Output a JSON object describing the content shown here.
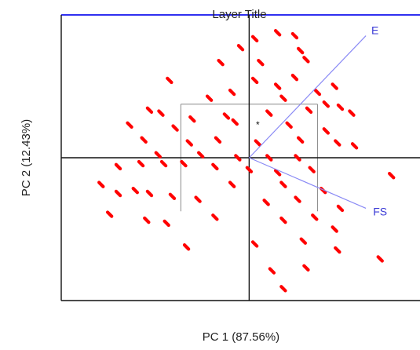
{
  "chart_data": {
    "type": "scatter",
    "title": "Layer Title",
    "xlabel": "PC 1 (87.56%)",
    "ylabel": "PC 2 (12.43%)",
    "xlim": [
      -3.3,
      3.0
    ],
    "ylim": [
      -2.4,
      2.4
    ],
    "grid": false,
    "legend": "none",
    "colors": {
      "points": "#ff0000",
      "vectors": "#8a8af5",
      "vector_labels": "#3b3bd6",
      "title_bar": "#2f2ff0",
      "axes": "#111111",
      "box": "#888888"
    },
    "point_marker": "short diagonal dash",
    "center_marker": "*",
    "centroid_box": {
      "x": [
        -1.2,
        1.2
      ],
      "y": [
        -0.9,
        0.9
      ]
    },
    "vectors": [
      {
        "name": "E",
        "x": 2.05,
        "y": 2.05
      },
      {
        "name": "FS",
        "x": 2.05,
        "y": -0.85
      }
    ],
    "points": [
      {
        "x": 0.1,
        "y": 2.0
      },
      {
        "x": 0.5,
        "y": 2.1
      },
      {
        "x": 0.8,
        "y": 2.05
      },
      {
        "x": -0.15,
        "y": 1.85
      },
      {
        "x": 0.9,
        "y": 1.8
      },
      {
        "x": 1.0,
        "y": 1.65
      },
      {
        "x": -0.5,
        "y": 1.6
      },
      {
        "x": 0.2,
        "y": 1.6
      },
      {
        "x": 0.8,
        "y": 1.35
      },
      {
        "x": -1.4,
        "y": 1.3
      },
      {
        "x": 0.1,
        "y": 1.3
      },
      {
        "x": 0.5,
        "y": 1.2
      },
      {
        "x": -0.7,
        "y": 1.0
      },
      {
        "x": -0.3,
        "y": 1.1
      },
      {
        "x": 0.6,
        "y": 1.0
      },
      {
        "x": 1.2,
        "y": 1.1
      },
      {
        "x": 1.5,
        "y": 1.2
      },
      {
        "x": 1.35,
        "y": 0.9
      },
      {
        "x": -1.75,
        "y": 0.8
      },
      {
        "x": -1.55,
        "y": 0.75
      },
      {
        "x": -1.0,
        "y": 0.65
      },
      {
        "x": -0.4,
        "y": 0.7
      },
      {
        "x": 0.35,
        "y": 0.75
      },
      {
        "x": 1.05,
        "y": 0.8
      },
      {
        "x": 1.6,
        "y": 0.85
      },
      {
        "x": 1.8,
        "y": 0.75
      },
      {
        "x": -2.1,
        "y": 0.55
      },
      {
        "x": -1.3,
        "y": 0.5
      },
      {
        "x": -0.25,
        "y": 0.6
      },
      {
        "x": 0.7,
        "y": 0.55
      },
      {
        "x": 1.35,
        "y": 0.45
      },
      {
        "x": -1.85,
        "y": 0.3
      },
      {
        "x": -1.05,
        "y": 0.25
      },
      {
        "x": -0.55,
        "y": 0.3
      },
      {
        "x": 0.15,
        "y": 0.25
      },
      {
        "x": 0.9,
        "y": 0.3
      },
      {
        "x": 1.55,
        "y": 0.25
      },
      {
        "x": 1.85,
        "y": 0.2
      },
      {
        "x": -1.6,
        "y": 0.05
      },
      {
        "x": -0.85,
        "y": 0.05
      },
      {
        "x": -0.2,
        "y": 0.0
      },
      {
        "x": 0.35,
        "y": 0.0
      },
      {
        "x": 0.85,
        "y": 0.0
      },
      {
        "x": -2.3,
        "y": -0.15
      },
      {
        "x": -1.9,
        "y": -0.1
      },
      {
        "x": -1.5,
        "y": -0.1
      },
      {
        "x": -1.15,
        "y": -0.1
      },
      {
        "x": -0.6,
        "y": -0.15
      },
      {
        "x": 0.0,
        "y": -0.2
      },
      {
        "x": 0.5,
        "y": -0.25
      },
      {
        "x": 1.1,
        "y": -0.2
      },
      {
        "x": -0.3,
        "y": -0.45
      },
      {
        "x": 0.6,
        "y": -0.45
      },
      {
        "x": 1.3,
        "y": -0.55
      },
      {
        "x": -2.6,
        "y": -0.45
      },
      {
        "x": -2.3,
        "y": -0.6
      },
      {
        "x": -2.0,
        "y": -0.55
      },
      {
        "x": -1.75,
        "y": -0.6
      },
      {
        "x": -1.35,
        "y": -0.65
      },
      {
        "x": -0.9,
        "y": -0.7
      },
      {
        "x": 0.3,
        "y": -0.75
      },
      {
        "x": 0.85,
        "y": -0.7
      },
      {
        "x": 1.6,
        "y": -0.85
      },
      {
        "x": -2.45,
        "y": -0.95
      },
      {
        "x": -1.8,
        "y": -1.05
      },
      {
        "x": -1.45,
        "y": -1.1
      },
      {
        "x": -0.6,
        "y": -1.0
      },
      {
        "x": 0.6,
        "y": -1.05
      },
      {
        "x": 1.15,
        "y": -1.0
      },
      {
        "x": 1.5,
        "y": -1.2
      },
      {
        "x": 2.5,
        "y": -0.3
      },
      {
        "x": -1.1,
        "y": -1.5
      },
      {
        "x": 0.1,
        "y": -1.45
      },
      {
        "x": 0.95,
        "y": -1.4
      },
      {
        "x": 1.55,
        "y": -1.55
      },
      {
        "x": 2.3,
        "y": -1.7
      },
      {
        "x": 0.4,
        "y": -1.9
      },
      {
        "x": 1.0,
        "y": -1.85
      },
      {
        "x": 0.6,
        "y": -2.2
      }
    ]
  }
}
